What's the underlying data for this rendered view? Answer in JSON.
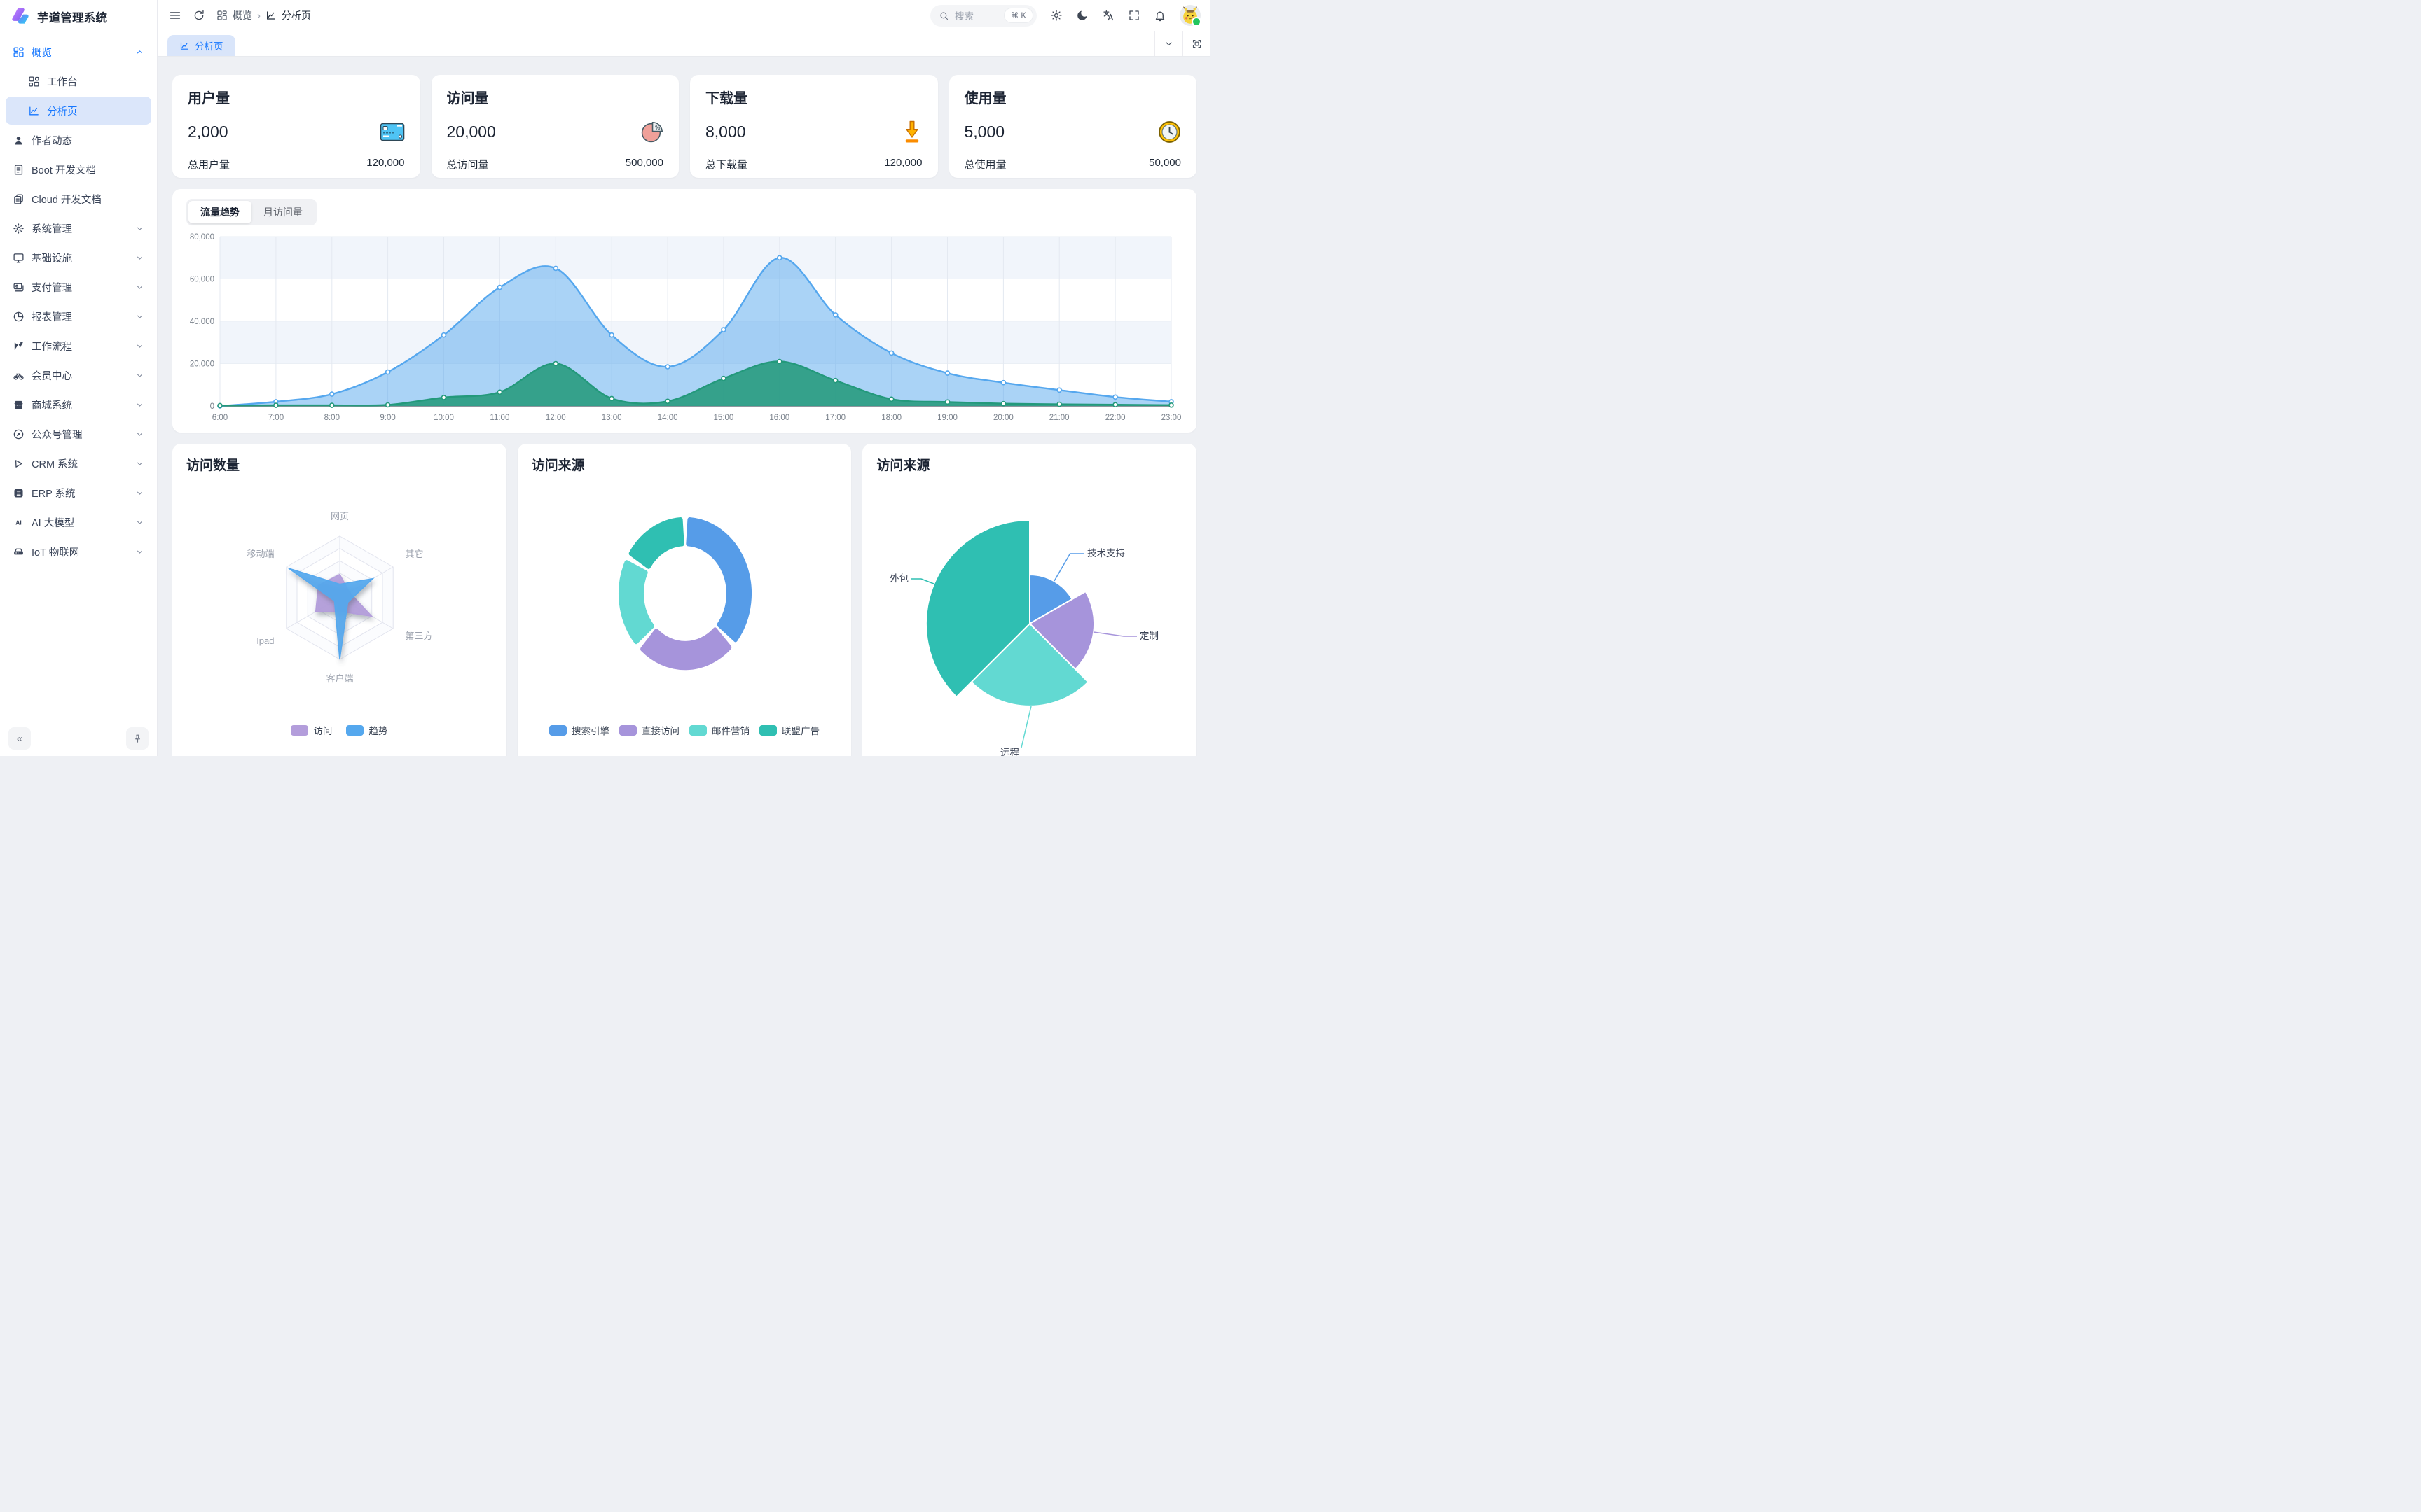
{
  "app": {
    "title": "芋道管理系统"
  },
  "theme": {
    "accent": "#1677ff",
    "sidebar_active_bg": "#dbe6fa",
    "content_bg": "#eef0f4",
    "card_bg": "#ffffff"
  },
  "sidebar": {
    "items": [
      {
        "id": "overview",
        "label": "概览",
        "icon": "grid",
        "chevron": "up",
        "parent_active": true
      },
      {
        "id": "workbench",
        "label": "工作台",
        "icon": "workbench",
        "child": true
      },
      {
        "id": "analysis",
        "label": "分析页",
        "icon": "analysis",
        "child": true,
        "active": true
      },
      {
        "id": "author",
        "label": "作者动态",
        "icon": "user"
      },
      {
        "id": "boot-doc",
        "label": "Boot 开发文档",
        "icon": "doc"
      },
      {
        "id": "cloud-doc",
        "label": "Cloud 开发文档",
        "icon": "docs"
      },
      {
        "id": "system",
        "label": "系统管理",
        "icon": "gear",
        "chevron": "down"
      },
      {
        "id": "infra",
        "label": "基础设施",
        "icon": "monitor",
        "chevron": "down"
      },
      {
        "id": "pay",
        "label": "支付管理",
        "icon": "pay",
        "chevron": "down"
      },
      {
        "id": "report",
        "label": "报表管理",
        "icon": "report",
        "chevron": "down"
      },
      {
        "id": "workflow",
        "label": "工作流程",
        "icon": "flow",
        "chevron": "down"
      },
      {
        "id": "member",
        "label": "会员中心",
        "icon": "bike",
        "chevron": "down"
      },
      {
        "id": "mall",
        "label": "商城系统",
        "icon": "shop",
        "chevron": "down"
      },
      {
        "id": "mp",
        "label": "公众号管理",
        "icon": "compass",
        "chevron": "down"
      },
      {
        "id": "crm",
        "label": "CRM 系统",
        "icon": "play",
        "chevron": "down"
      },
      {
        "id": "erp",
        "label": "ERP 系统",
        "icon": "erp",
        "chevron": "down"
      },
      {
        "id": "ai",
        "label": "AI 大模型",
        "icon": "ai",
        "chevron": "down"
      },
      {
        "id": "iot",
        "label": "IoT 物联网",
        "icon": "iot",
        "chevron": "down"
      }
    ],
    "collapse_label": "«"
  },
  "topbar": {
    "breadcrumb": [
      {
        "label": "概览",
        "icon": "grid"
      },
      {
        "label": "分析页",
        "icon": "analysis"
      }
    ],
    "search": {
      "placeholder": "搜索",
      "shortcut": "⌘ K"
    },
    "actions": [
      "settings",
      "moon",
      "translate",
      "fullscreen",
      "bell"
    ]
  },
  "tabbar": {
    "active_tab": "分析页",
    "right_icons": [
      "chevron-down",
      "fullscreen-exit"
    ]
  },
  "stats": {
    "cards": [
      {
        "title": "用户量",
        "value": "2,000",
        "icon": "credit-card",
        "footer_label": "总用户量",
        "footer_value": "120,000"
      },
      {
        "title": "访问量",
        "value": "20,000",
        "icon": "pie-percent",
        "footer_label": "总访问量",
        "footer_value": "500,000"
      },
      {
        "title": "下载量",
        "value": "8,000",
        "icon": "download-arrow",
        "footer_label": "总下载量",
        "footer_value": "120,000"
      },
      {
        "title": "使用量",
        "value": "5,000",
        "icon": "wall-clock",
        "footer_label": "总使用量",
        "footer_value": "50,000"
      }
    ]
  },
  "traffic": {
    "tabs": [
      "流量趋势",
      "月访问量"
    ],
    "active_tab": "流量趋势"
  },
  "chart_data": [
    {
      "type": "area",
      "title": "流量趋势",
      "x": [
        "6:00",
        "7:00",
        "8:00",
        "9:00",
        "10:00",
        "11:00",
        "12:00",
        "13:00",
        "14:00",
        "15:00",
        "16:00",
        "17:00",
        "18:00",
        "19:00",
        "20:00",
        "21:00",
        "22:00",
        "23:00"
      ],
      "ylim": [
        0,
        80000
      ],
      "yticks": [
        0,
        20000,
        40000,
        60000,
        80000
      ],
      "grid": "vertical-lines with alternating horizontal split areas",
      "legend_position": "none",
      "series": [
        {
          "color": "#55A7EE",
          "fill": "rgba(85,167,238,0.50)",
          "values": [
            0,
            2000,
            5600,
            16000,
            33500,
            56000,
            65000,
            33500,
            18500,
            36000,
            70000,
            43000,
            25000,
            15500,
            11000,
            7500,
            4200,
            2000
          ]
        },
        {
          "color": "#23997B",
          "fill": "rgba(46,158,133,0.95)",
          "values": [
            200,
            300,
            300,
            500,
            4000,
            6500,
            20000,
            3500,
            2200,
            13000,
            21000,
            12000,
            3200,
            1900,
            1100,
            800,
            600,
            400
          ]
        }
      ]
    },
    {
      "type": "radar",
      "title": "访问数量",
      "indicators": [
        "网页",
        "其它",
        "第三方",
        "客户端",
        "Ipad",
        "移动端"
      ],
      "max": 100,
      "legend_position": "bottom",
      "series": [
        {
          "name": "访问",
          "color": "#B39DDB",
          "values": [
            38,
            18,
            60,
            22,
            45,
            40
          ]
        },
        {
          "name": "趋势",
          "color": "#55A8EE",
          "values": [
            22,
            62,
            15,
            100,
            10,
            96
          ]
        }
      ]
    },
    {
      "type": "pie",
      "style": "donut",
      "title": "访问来源",
      "legend_position": "bottom",
      "labels": [
        "搜索引擎",
        "直接访问",
        "邮件营销",
        "联盟广告"
      ],
      "values": [
        1048,
        735,
        580,
        484
      ],
      "colors": [
        "#569CE8",
        "#A694DB",
        "#62D9D2",
        "#2FBFB2"
      ]
    },
    {
      "type": "pie",
      "style": "rose",
      "title": "访问来源",
      "legend_position": "none",
      "labels": [
        "技术支持",
        "定制",
        "远程",
        "外包"
      ],
      "values": [
        200,
        250,
        300,
        450
      ],
      "colors": [
        "#569CE8",
        "#A694DB",
        "#62D9D2",
        "#2FBFB2"
      ]
    }
  ]
}
